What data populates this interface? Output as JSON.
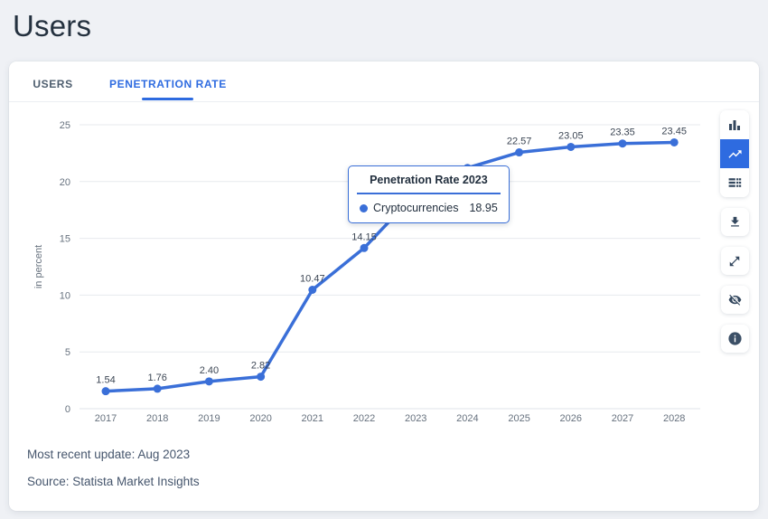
{
  "page": {
    "title": "Users"
  },
  "tabs": [
    {
      "label": "USERS",
      "active": false
    },
    {
      "label": "PENETRATION RATE",
      "active": true
    }
  ],
  "toolbar": {
    "buttons": [
      {
        "icon": "bar-chart-icon",
        "active": false
      },
      {
        "icon": "line-chart-icon",
        "active": true
      },
      {
        "icon": "table-icon",
        "active": false
      },
      {
        "icon": "download-icon",
        "active": false
      },
      {
        "icon": "expand-icon",
        "active": false
      },
      {
        "icon": "hide-icon",
        "active": false
      },
      {
        "icon": "info-icon",
        "active": false
      }
    ]
  },
  "tooltip": {
    "title": "Penetration Rate 2023",
    "series": "Cryptocurrencies",
    "value": "18.95"
  },
  "footer": {
    "update": "Most recent update: Aug 2023",
    "source": "Source: Statista Market Insights"
  },
  "colors": {
    "accent": "#3a6fd8",
    "active_button_bg": "#2e6be0",
    "icon": "#33475e",
    "grid": "#e7eaee"
  },
  "chart_data": {
    "type": "line",
    "title": "",
    "xlabel": "",
    "ylabel": "in percent",
    "categories": [
      "2017",
      "2018",
      "2019",
      "2020",
      "2021",
      "2022",
      "2023",
      "2024",
      "2025",
      "2026",
      "2027",
      "2028"
    ],
    "series": [
      {
        "name": "Cryptocurrencies",
        "values": [
          1.54,
          1.76,
          2.4,
          2.82,
          10.47,
          14.15,
          18.95,
          21.2,
          22.57,
          23.05,
          23.35,
          23.45
        ]
      }
    ],
    "yticks": [
      0,
      5,
      10,
      15,
      20,
      25
    ],
    "ylim": [
      0,
      25
    ],
    "grid": "horizontal",
    "legend": "none",
    "line_color": "#3a6fd8",
    "highlighted_point": "2023",
    "hidden_point_labels": [
      "2024"
    ]
  }
}
